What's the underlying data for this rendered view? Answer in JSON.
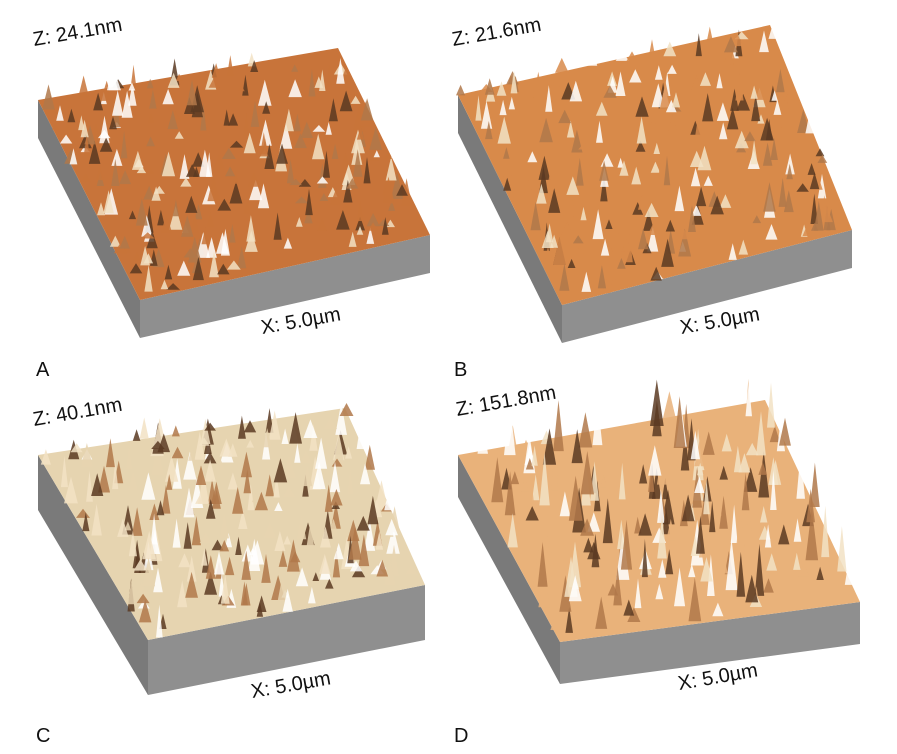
{
  "panels": [
    {
      "letter": "A",
      "z_label": "Z: 24.1nm",
      "x_label": "X: 5.0µm"
    },
    {
      "letter": "B",
      "z_label": "Z: 21.6nm",
      "x_label": "X: 5.0µm"
    },
    {
      "letter": "C",
      "z_label": "Z: 40.1nm",
      "x_label": "X: 5.0µm"
    },
    {
      "letter": "D",
      "z_label": "Z: 151.8nm",
      "x_label": "X: 5.0µm"
    }
  ],
  "colors": {
    "side_wall": "#8f8f8f",
    "side_wall_dark": "#7a7a7a",
    "panel_A_surface": "#c8743a",
    "panel_B_surface": "#d88a4a",
    "panel_C_surface": "#e6d4b0",
    "panel_D_surface": "#e9b27a",
    "peak_shadow": "#5a3a22"
  }
}
